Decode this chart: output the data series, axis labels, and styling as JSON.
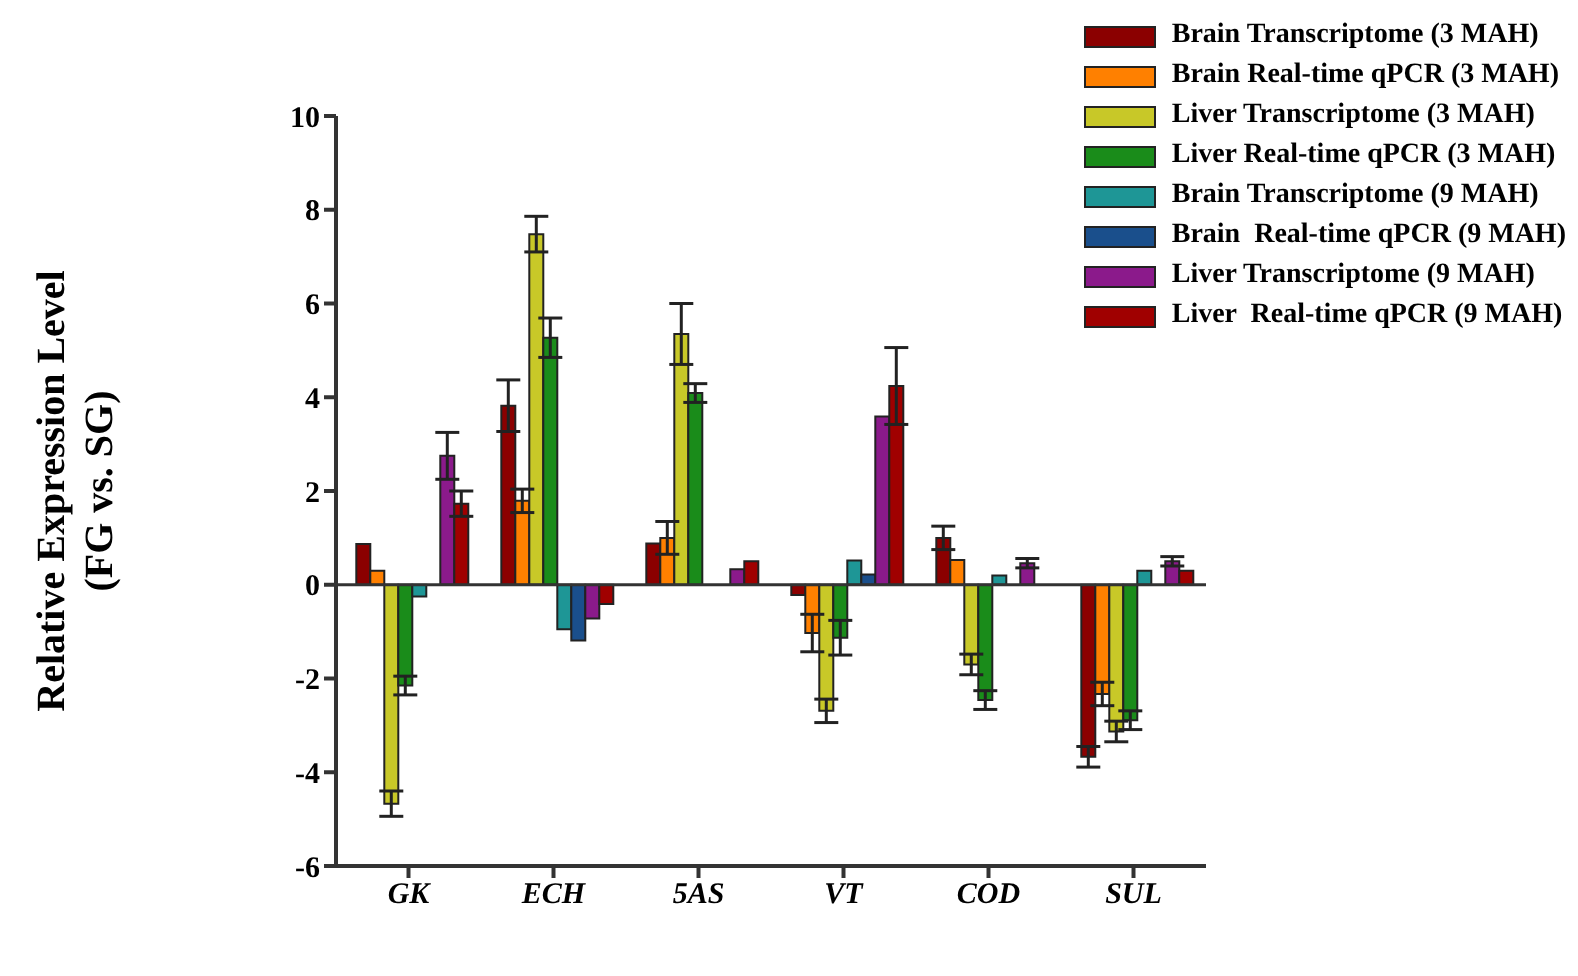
{
  "chart_data": {
    "type": "bar",
    "ylabel": "Relative Expression Level\n(FG vs. SG)",
    "categories": [
      "GK",
      "ECH",
      "5AS",
      "VT",
      "COD",
      "SUL"
    ],
    "ylim": [
      -6,
      10
    ],
    "yticks": [
      -6,
      -4,
      -2,
      0,
      2,
      4,
      6,
      8,
      10
    ],
    "grid": false,
    "legend": "top right",
    "ref_lines": [
      {
        "axis": "y",
        "value": 0
      }
    ],
    "series": [
      {
        "name": "Brain Transcriptome (3 MAH)",
        "color": "#8b0000",
        "values": [
          0.87,
          3.82,
          0.88,
          -0.22,
          1.0,
          -3.67
        ],
        "errors": [
          null,
          0.55,
          null,
          null,
          0.25,
          0.22
        ]
      },
      {
        "name": "Brain Real-time qPCR (3 MAH)",
        "color": "#ff8000",
        "values": [
          0.3,
          1.79,
          1.0,
          -1.03,
          0.53,
          -2.33
        ],
        "errors": [
          null,
          0.25,
          0.35,
          0.4,
          null,
          0.25
        ]
      },
      {
        "name": "Liver Transcriptome (3 MAH)",
        "color": "#c8c828",
        "values": [
          -4.67,
          7.48,
          5.35,
          -2.69,
          -1.7,
          -3.13
        ],
        "errors": [
          0.27,
          0.38,
          0.65,
          0.25,
          0.22,
          0.22
        ]
      },
      {
        "name": "Liver Real-time qPCR (3 MAH)",
        "color": "#1a8c1a",
        "values": [
          -2.15,
          5.27,
          4.09,
          -1.13,
          -2.46,
          -2.89
        ],
        "errors": [
          0.2,
          0.42,
          0.2,
          0.37,
          0.2,
          0.2
        ]
      },
      {
        "name": "Brain Transcriptome (9 MAH)",
        "color": "#1e9696",
        "values": [
          -0.25,
          -0.95,
          0,
          0.52,
          0.2,
          0.3
        ],
        "errors": [
          null,
          null,
          null,
          null,
          null,
          null
        ]
      },
      {
        "name": "Brain  Real-time qPCR (9 MAH)",
        "color": "#1a4f8c",
        "values": [
          0,
          -1.19,
          0,
          0.22,
          0,
          0
        ],
        "errors": [
          null,
          null,
          null,
          null,
          null,
          null
        ]
      },
      {
        "name": "Liver Transcriptome (9 MAH)",
        "color": "#8b1a8b",
        "values": [
          2.75,
          -0.72,
          0.33,
          3.59,
          0.46,
          0.5
        ],
        "errors": [
          0.5,
          null,
          null,
          null,
          0.1,
          0.1
        ]
      },
      {
        "name": "Liver  Real-time qPCR (9 MAH)",
        "color": "#a00000",
        "values": [
          1.73,
          -0.41,
          0.5,
          4.24,
          0,
          0.3
        ],
        "errors": [
          0.27,
          null,
          null,
          0.82,
          null,
          null
        ]
      }
    ]
  }
}
